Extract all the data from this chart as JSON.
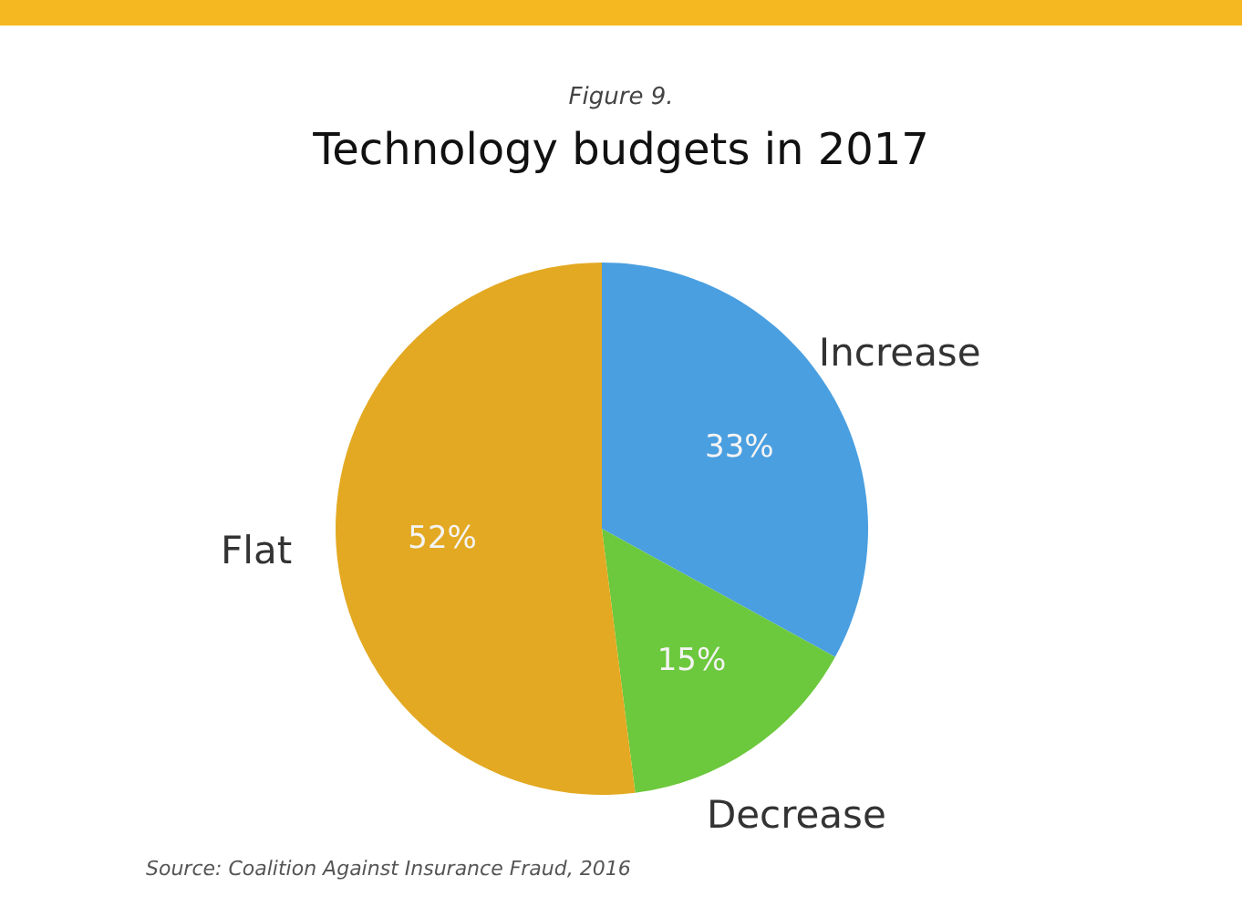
{
  "chart_data": {
    "type": "pie",
    "title": "Technology budgets in 2017",
    "subtitle": "Figure 9.",
    "categories": [
      "Increase",
      "Decrease",
      "Flat"
    ],
    "values": [
      33,
      15,
      52
    ],
    "colors": [
      "#4a9fe0",
      "#6cc83c",
      "#e3a922"
    ],
    "value_labels": [
      "33%",
      "15%",
      "52%"
    ],
    "annotations": [
      "Source: Coalition Against Insurance Fraud, 2016"
    ]
  }
}
